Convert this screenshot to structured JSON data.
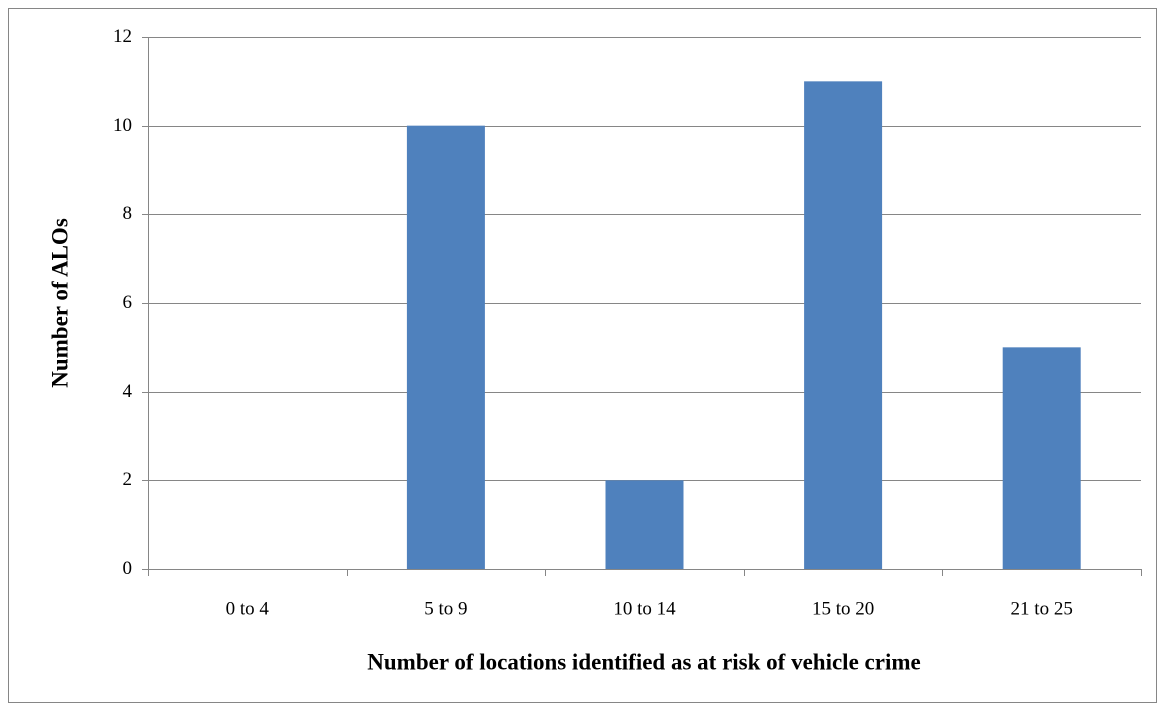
{
  "chart_data": {
    "type": "bar",
    "x_label": "Number of locations identified as at risk of vehicle crime",
    "y_label": "Number of ALOs",
    "categories": [
      "0 to 4",
      "5 to 9",
      "10 to 14",
      "15 to 20",
      "21 to 25"
    ],
    "values": [
      0,
      10,
      2,
      11,
      5
    ],
    "color": "#4f81bd",
    "ylim": [
      0,
      12
    ],
    "yticks": [
      0,
      2,
      4,
      6,
      8,
      10,
      12
    ],
    "grid": true
  }
}
